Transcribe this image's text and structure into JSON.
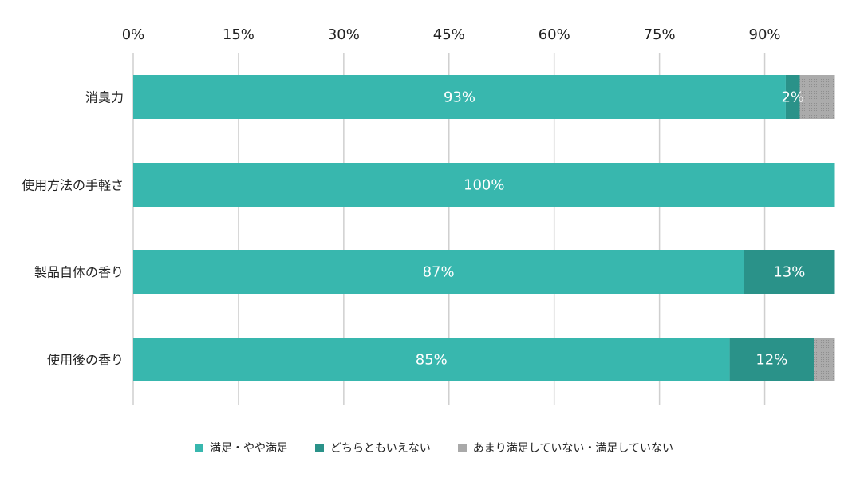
{
  "chart_data": {
    "type": "bar",
    "orientation": "horizontal",
    "stacked": true,
    "x_axis_position": "top",
    "xlim": [
      0,
      100
    ],
    "x_ticks": [
      0,
      15,
      30,
      45,
      60,
      75,
      90
    ],
    "x_tick_labels": [
      "0%",
      "15%",
      "30%",
      "45%",
      "60%",
      "75%",
      "90%"
    ],
    "grid": true,
    "legend_position": "bottom",
    "categories": [
      "消臭力",
      "使用方法の手軽さ",
      "製品自体の香り",
      "使用後の香り"
    ],
    "series": [
      {
        "name": "満足・やや満足",
        "color": "#38b7ae",
        "values": [
          93,
          100,
          87,
          85
        ],
        "labels": [
          "93%",
          "100%",
          "87%",
          "85%"
        ]
      },
      {
        "name": "どちらともいえない",
        "color": "#2a9289",
        "values": [
          2,
          0,
          13,
          12
        ],
        "labels": [
          "2%",
          "",
          "13%",
          "12%"
        ]
      },
      {
        "name": "あまり満足していない・満足していない",
        "color": "#a9a9a9",
        "values": [
          5,
          0,
          0,
          3
        ],
        "labels": [
          "",
          "",
          "",
          ""
        ]
      }
    ]
  }
}
